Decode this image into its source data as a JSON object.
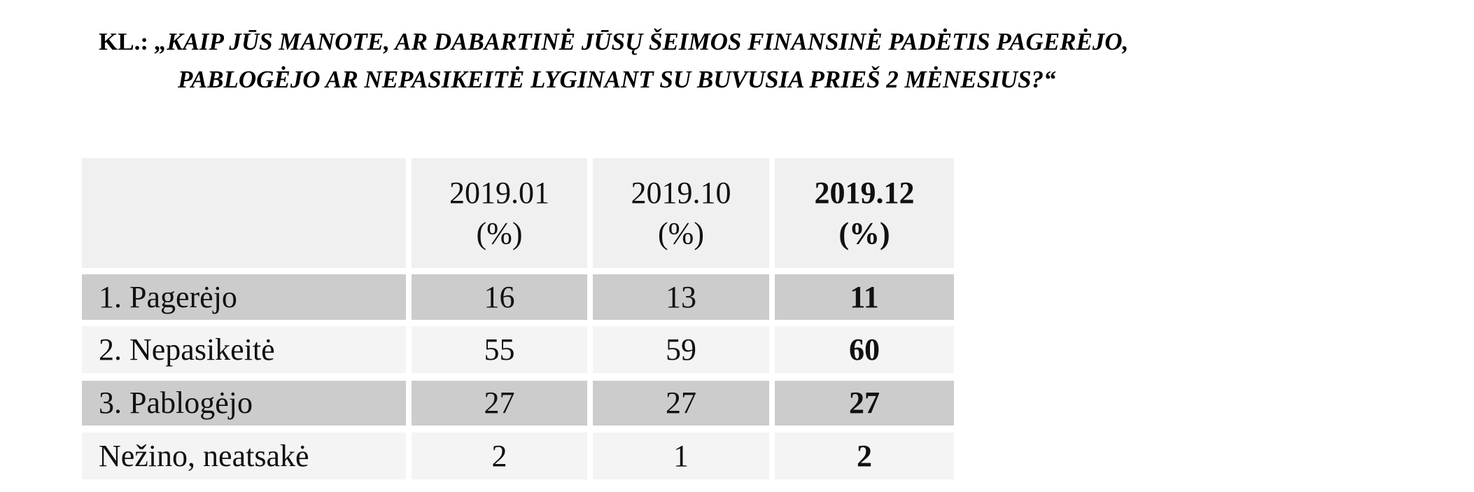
{
  "header": {
    "prefix": "KL.:",
    "lines": [
      "„KAIP JŪS MANOTE, AR DABARTINĖ JŪSŲ ŠEIMOS FINANSINĖ PADĖTIS PAGERĖJO,",
      "PABLOGĖJO AR NEPASIKEITĖ LYGINANT SU BUVUSIA PRIEŠ 2 MĖNESIUS?“"
    ]
  },
  "table": {
    "columns": [
      {
        "label": "2019.01",
        "unit": "(%)"
      },
      {
        "label": "2019.10",
        "unit": "(%)"
      },
      {
        "label": "2019.12",
        "unit": "(%)"
      }
    ],
    "rows": [
      [
        "1. Pagerėjo",
        16,
        13,
        11
      ],
      [
        "2. Nepasikeitė",
        55,
        59,
        60
      ],
      [
        "3. Pablogėjo",
        27,
        27,
        27
      ],
      [
        "Nežino, neatsakė",
        2,
        1,
        2
      ]
    ]
  }
}
